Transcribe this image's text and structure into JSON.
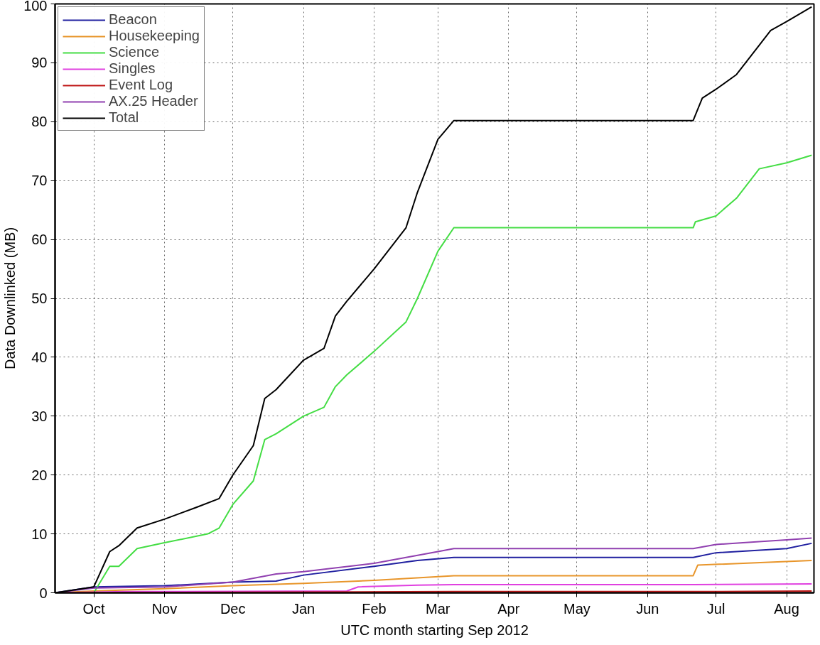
{
  "chart_data": {
    "type": "line",
    "xlabel": "UTC month starting Sep 2012",
    "ylabel": "Data Downlinked (MB)",
    "xlim": [
      "2012-09-14",
      "2013-08-13"
    ],
    "ylim": [
      0,
      100
    ],
    "xticks": [
      {
        "value": "2012-10-01",
        "label": "Oct"
      },
      {
        "value": "2012-11-01",
        "label": "Nov"
      },
      {
        "value": "2012-12-01",
        "label": "Dec"
      },
      {
        "value": "2013-01-01",
        "label": "Jan"
      },
      {
        "value": "2013-02-01",
        "label": "Feb"
      },
      {
        "value": "2013-03-01",
        "label": "Mar"
      },
      {
        "value": "2013-04-01",
        "label": "Apr"
      },
      {
        "value": "2013-05-01",
        "label": "May"
      },
      {
        "value": "2013-06-01",
        "label": "Jun"
      },
      {
        "value": "2013-07-01",
        "label": "Jul"
      },
      {
        "value": "2013-08-01",
        "label": "Aug"
      }
    ],
    "yticks": [
      0,
      10,
      20,
      30,
      40,
      50,
      60,
      70,
      80,
      90,
      100
    ],
    "grid": true,
    "legend": "top left",
    "line_style": "solid",
    "series": [
      {
        "name": "Beacon",
        "color": "#2020a0",
        "x": [
          "2012-09-14",
          "2012-10-01",
          "2012-11-01",
          "2012-12-01",
          "2012-12-20",
          "2013-01-01",
          "2013-02-01",
          "2013-02-20",
          "2013-03-08",
          "2013-06-21",
          "2013-07-01",
          "2013-08-01",
          "2013-08-12"
        ],
        "values": [
          0,
          1,
          1.2,
          1.8,
          2,
          3,
          4.5,
          5.5,
          6,
          6,
          6.8,
          7.5,
          8.4
        ]
      },
      {
        "name": "Housekeeping",
        "color": "#e8952a",
        "x": [
          "2012-09-14",
          "2012-10-01",
          "2012-11-01",
          "2012-12-01",
          "2013-01-01",
          "2013-02-01",
          "2013-03-08",
          "2013-06-21",
          "2013-06-23",
          "2013-08-12"
        ],
        "values": [
          0,
          0.3,
          0.7,
          1.2,
          1.6,
          2.1,
          2.9,
          2.9,
          4.7,
          5.5
        ]
      },
      {
        "name": "Science",
        "color": "#44dd44",
        "x": [
          "2012-10-01",
          "2012-10-08",
          "2012-10-12",
          "2012-10-20",
          "2012-11-01",
          "2012-11-20",
          "2012-11-25",
          "2012-12-01",
          "2012-12-10",
          "2012-12-15",
          "2012-12-20",
          "2013-01-01",
          "2013-01-10",
          "2013-01-15",
          "2013-01-20",
          "2013-02-01",
          "2013-02-15",
          "2013-02-20",
          "2013-03-01",
          "2013-03-08",
          "2013-06-21",
          "2013-06-22",
          "2013-07-01",
          "2013-07-10",
          "2013-07-20",
          "2013-08-01",
          "2013-08-12"
        ],
        "values": [
          0,
          4.5,
          4.5,
          7.5,
          8.5,
          10,
          11,
          15,
          19,
          26,
          27,
          30,
          31.5,
          35,
          37,
          41,
          46,
          50,
          58,
          62,
          62,
          63,
          64,
          67,
          72,
          73,
          74.3
        ]
      },
      {
        "name": "Singles",
        "color": "#e040e0",
        "x": [
          "2012-09-14",
          "2012-10-15",
          "2013-01-20",
          "2013-01-25",
          "2013-02-20",
          "2013-03-08",
          "2013-06-21",
          "2013-08-12"
        ],
        "values": [
          0,
          0.2,
          0.3,
          1,
          1.3,
          1.4,
          1.4,
          1.5
        ]
      },
      {
        "name": "Event Log",
        "color": "#c01818",
        "x": [
          "2012-09-14",
          "2013-03-08",
          "2013-06-21",
          "2013-08-12"
        ],
        "values": [
          0,
          0.2,
          0.2,
          0.3
        ]
      },
      {
        "name": "AX.25 Header",
        "color": "#9040b0",
        "x": [
          "2012-09-14",
          "2012-10-01",
          "2012-11-01",
          "2012-12-01",
          "2012-12-20",
          "2013-01-01",
          "2013-02-01",
          "2013-03-01",
          "2013-03-08",
          "2013-06-21",
          "2013-07-01",
          "2013-08-01",
          "2013-08-12"
        ],
        "values": [
          0,
          0.8,
          1.0,
          1.8,
          3.2,
          3.6,
          5.0,
          7.0,
          7.5,
          7.5,
          8.2,
          9,
          9.3
        ]
      },
      {
        "name": "Total",
        "color": "#000000",
        "x": [
          "2012-09-14",
          "2012-10-01",
          "2012-10-08",
          "2012-10-12",
          "2012-10-20",
          "2012-11-01",
          "2012-11-15",
          "2012-11-25",
          "2012-12-01",
          "2012-12-10",
          "2012-12-15",
          "2012-12-20",
          "2013-01-01",
          "2013-01-10",
          "2013-01-15",
          "2013-01-20",
          "2013-02-01",
          "2013-02-15",
          "2013-02-20",
          "2013-03-01",
          "2013-03-08",
          "2013-06-21",
          "2013-06-25",
          "2013-07-01",
          "2013-07-10",
          "2013-07-20",
          "2013-07-25",
          "2013-08-01",
          "2013-08-12"
        ],
        "values": [
          0,
          1,
          7,
          8,
          11,
          12.5,
          14.5,
          16,
          20,
          25,
          33,
          34.5,
          39.5,
          41.5,
          47,
          49.5,
          55,
          62,
          68,
          77,
          80.2,
          80.2,
          84,
          85.5,
          88,
          93,
          95.5,
          97,
          99.5
        ]
      }
    ]
  }
}
